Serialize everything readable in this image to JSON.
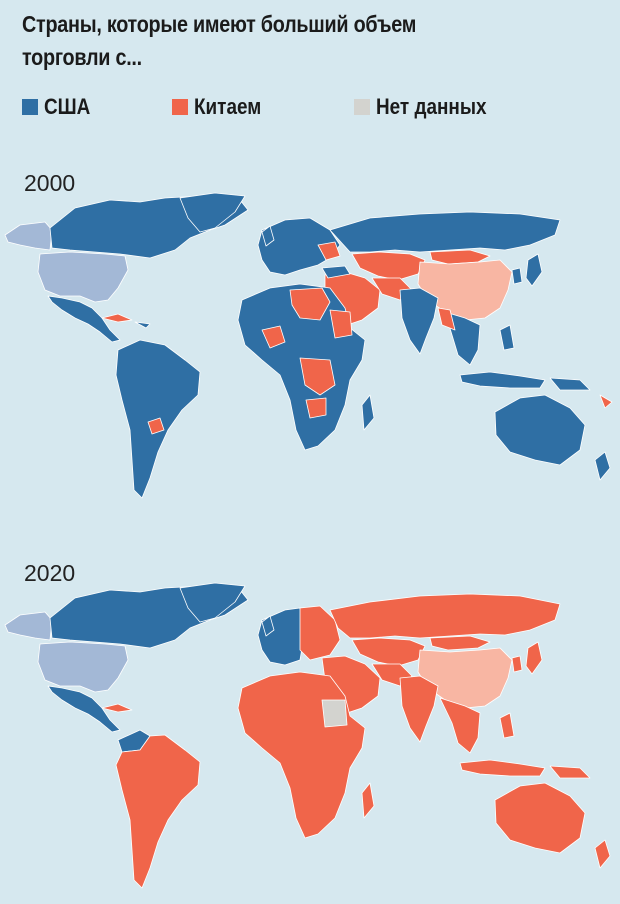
{
  "title": "Страны, которые имеют больший объем торговли с...",
  "legend": {
    "usa": {
      "label": "США",
      "color": "#2f6fa4"
    },
    "china": {
      "label": "Китаем",
      "color": "#f0654a"
    },
    "nodata": {
      "label": "Нет данных",
      "color": "#d3d3cf"
    }
  },
  "highlight_colors": {
    "usa_self": "#a3b8d6",
    "china_self": "#f8b6a3",
    "ocean": "#d6e8ef"
  },
  "maps": [
    {
      "year": "2000",
      "dominant_partner": "США"
    },
    {
      "year": "2020",
      "dominant_partner": "Китаем"
    }
  ]
}
